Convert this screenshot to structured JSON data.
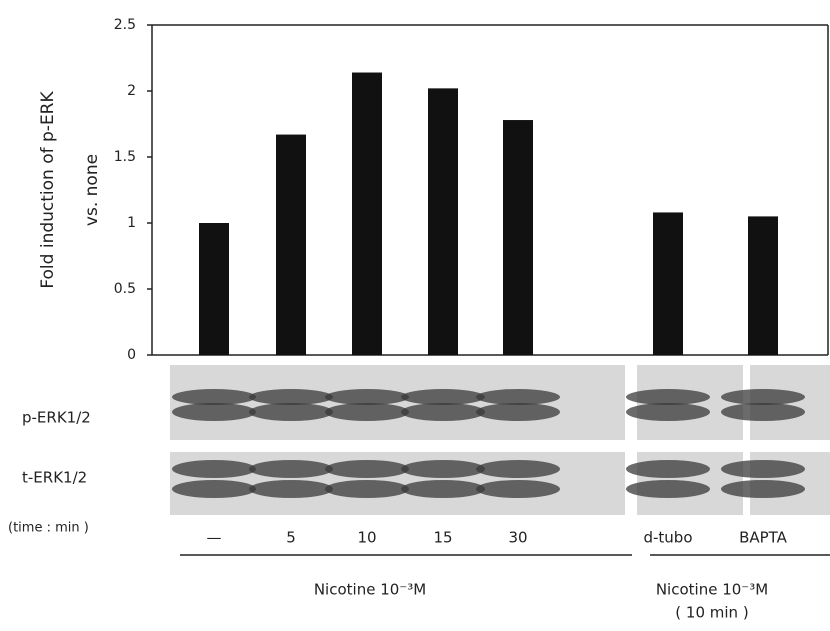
{
  "chart_data": {
    "type": "bar",
    "y_label": [
      "Fold induction of p-ERK",
      "vs. none"
    ],
    "categories": [
      "—",
      "5",
      "10",
      "15",
      "30",
      "d-tubo",
      "BAPTA"
    ],
    "values": [
      1.0,
      1.67,
      2.14,
      2.02,
      1.78,
      1.08,
      1.05
    ],
    "color": "#111111",
    "ylim": [
      0,
      2.5
    ],
    "yticks": [
      0,
      0.5,
      1,
      1.5,
      2,
      2.5
    ],
    "blot_rows": [
      "p-ERK1/2",
      "t-ERK1/2"
    ],
    "x_label": "(time : min )",
    "groups": [
      {
        "label": [
          "Nicotine 10⁻³M"
        ]
      },
      {
        "label": [
          "Nicotine 10⁻³M",
          "( 10 min )"
        ]
      }
    ]
  }
}
